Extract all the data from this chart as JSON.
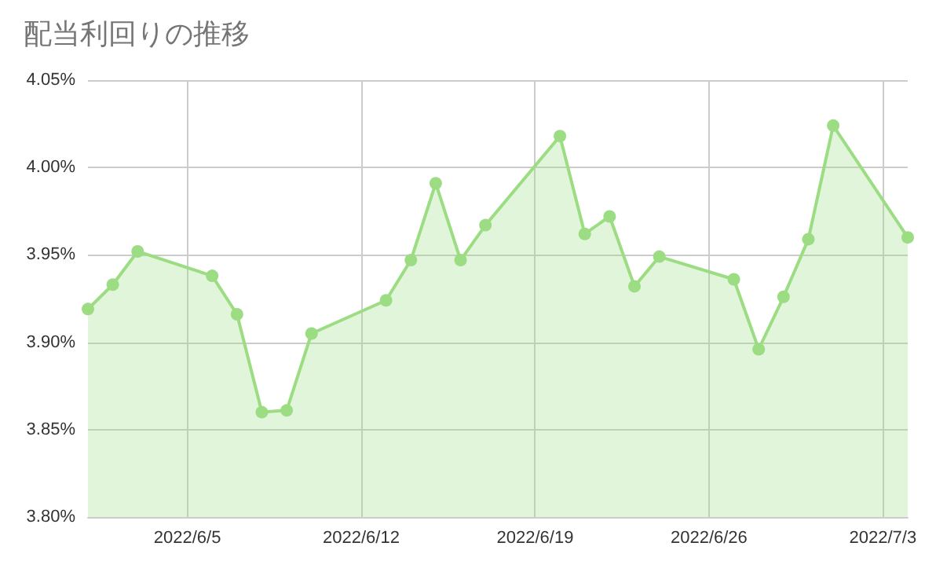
{
  "chart_data": {
    "type": "area",
    "title": "配当利回りの推移",
    "x": [
      "2022-06-01",
      "2022-06-02",
      "2022-06-03",
      "2022-06-06",
      "2022-06-07",
      "2022-06-08",
      "2022-06-09",
      "2022-06-10",
      "2022-06-13",
      "2022-06-14",
      "2022-06-15",
      "2022-06-16",
      "2022-06-17",
      "2022-06-20",
      "2022-06-21",
      "2022-06-22",
      "2022-06-23",
      "2022-06-24",
      "2022-06-27",
      "2022-06-28",
      "2022-06-29",
      "2022-06-30",
      "2022-07-01",
      "2022-07-04"
    ],
    "series": [
      {
        "color": "#9cdd83",
        "values": [
          3.919,
          3.933,
          3.952,
          3.938,
          3.916,
          3.86,
          3.861,
          3.905,
          3.924,
          3.947,
          3.991,
          3.947,
          3.967,
          4.018,
          3.962,
          3.972,
          3.932,
          3.949,
          3.936,
          3.896,
          3.926,
          3.959,
          4.024,
          3.96
        ]
      }
    ],
    "xlim": [
      "2022-06-01",
      "2022-07-04"
    ],
    "xticks": [
      {
        "value": "2022-06-05",
        "label": "2022/6/5"
      },
      {
        "value": "2022-06-12",
        "label": "2022/6/12"
      },
      {
        "value": "2022-06-19",
        "label": "2022/6/19"
      },
      {
        "value": "2022-06-26",
        "label": "2022/6/26"
      },
      {
        "value": "2022-07-03",
        "label": "2022/7/3"
      }
    ],
    "ylim": [
      3.8,
      4.05
    ],
    "yticks": [
      {
        "value": 3.8,
        "label": "3.80%"
      },
      {
        "value": 3.85,
        "label": "3.85%"
      },
      {
        "value": 3.9,
        "label": "3.90%"
      },
      {
        "value": 3.95,
        "label": "3.95%"
      },
      {
        "value": 4.0,
        "label": "4.00%"
      },
      {
        "value": 4.05,
        "label": "4.05%"
      }
    ],
    "grid": true,
    "marker": "circle",
    "line_style": "solid"
  }
}
